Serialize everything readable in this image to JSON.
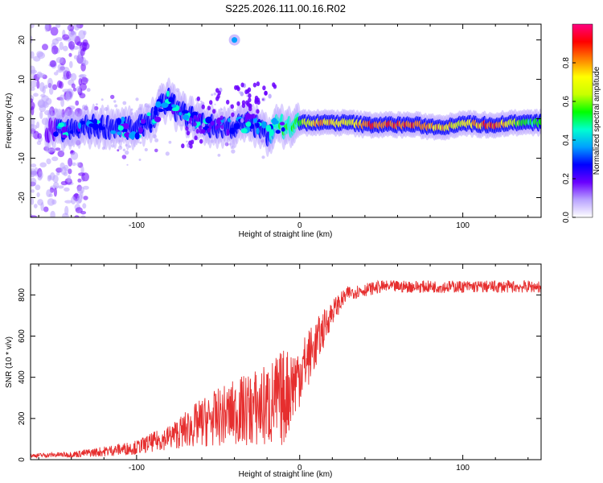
{
  "title": "S225.2026.111.00.16.R02",
  "chart_data": [
    {
      "type": "heatmap",
      "xlabel": "Height of straight line (km)",
      "ylabel": "Frequency (Hz)",
      "xlim": [
        -165,
        148
      ],
      "ylim": [
        -25,
        24
      ],
      "xticks": [
        -100,
        0,
        100
      ],
      "yticks": [
        -20,
        -10,
        0,
        10,
        20
      ],
      "colorbar": {
        "label": "Normalized spectral amplitude",
        "range": [
          0,
          1
        ],
        "ticks": [
          "0.0",
          "0.2",
          "0.4",
          "0.6",
          "0.8"
        ],
        "colors": [
          "#ffffff",
          "#b9a3ff",
          "#6a00ff",
          "#0000ff",
          "#00a0ff",
          "#00ffd0",
          "#00ff00",
          "#c8ff00",
          "#ffff00",
          "#ff8000",
          "#ff0000",
          "#ff0080"
        ]
      },
      "ridge": [
        {
          "x": -160,
          "f": -3,
          "a": 0.25
        },
        {
          "x": -150,
          "f": -3,
          "a": 0.25
        },
        {
          "x": -140,
          "f": -3,
          "a": 0.3
        },
        {
          "x": -130,
          "f": -2,
          "a": 0.3
        },
        {
          "x": -120,
          "f": -2,
          "a": 0.3
        },
        {
          "x": -110,
          "f": -2,
          "a": 0.3
        },
        {
          "x": -100,
          "f": -3,
          "a": 0.35
        },
        {
          "x": -95,
          "f": -1,
          "a": 0.35
        },
        {
          "x": -90,
          "f": 0,
          "a": 0.35
        },
        {
          "x": -85,
          "f": 3,
          "a": 0.35
        },
        {
          "x": -80,
          "f": 5,
          "a": 0.35
        },
        {
          "x": -75,
          "f": 2,
          "a": 0.3
        },
        {
          "x": -65,
          "f": 0,
          "a": 0.3
        },
        {
          "x": -55,
          "f": -2,
          "a": 0.3
        },
        {
          "x": -40,
          "f": -2,
          "a": 0.3
        },
        {
          "x": -30,
          "f": -1,
          "a": 0.3
        },
        {
          "x": -20,
          "f": -4,
          "a": 0.3
        },
        {
          "x": -15,
          "f": -2,
          "a": 0.45
        },
        {
          "x": -5,
          "f": -2,
          "a": 0.55
        },
        {
          "x": 0,
          "f": -1,
          "a": 0.55
        },
        {
          "x": 10,
          "f": -1,
          "a": 0.75
        },
        {
          "x": 20,
          "f": -1,
          "a": 0.75
        },
        {
          "x": 30,
          "f": -1,
          "a": 0.65
        },
        {
          "x": 40,
          "f": -1.5,
          "a": 0.85
        },
        {
          "x": 50,
          "f": -1.5,
          "a": 0.85
        },
        {
          "x": 60,
          "f": -1.5,
          "a": 0.85
        },
        {
          "x": 70,
          "f": -1.5,
          "a": 0.85
        },
        {
          "x": 80,
          "f": -2,
          "a": 0.75
        },
        {
          "x": 90,
          "f": -2,
          "a": 0.75
        },
        {
          "x": 100,
          "f": -1,
          "a": 0.65
        },
        {
          "x": 110,
          "f": -1.5,
          "a": 0.8
        },
        {
          "x": 120,
          "f": -1.5,
          "a": 0.85
        },
        {
          "x": 130,
          "f": -1,
          "a": 0.65
        },
        {
          "x": 140,
          "f": -1,
          "a": 0.5
        },
        {
          "x": 148,
          "f": -1,
          "a": 0.5
        }
      ],
      "annotations": [
        {
          "x": -40,
          "f": 20,
          "a": 0.35,
          "text": ""
        }
      ]
    },
    {
      "type": "line",
      "xlabel": "Height of straight line (km)",
      "ylabel": "SNR (10 * v/v)",
      "xlim": [
        -165,
        148
      ],
      "ylim": [
        0,
        950
      ],
      "xticks": [
        -100,
        0,
        100
      ],
      "yticks": [
        0,
        200,
        400,
        600,
        800
      ],
      "color": "#e62e2e",
      "envelope": {
        "x": [
          -165,
          -140,
          -120,
          -100,
          -80,
          -60,
          -40,
          -20,
          -10,
          0,
          10,
          20,
          30,
          50,
          148
        ],
        "mean": [
          20,
          25,
          40,
          60,
          110,
          180,
          230,
          260,
          300,
          420,
          560,
          720,
          810,
          840,
          840
        ],
        "amp": [
          10,
          15,
          25,
          35,
          60,
          120,
          160,
          210,
          240,
          160,
          120,
          60,
          35,
          30,
          30
        ]
      }
    }
  ]
}
